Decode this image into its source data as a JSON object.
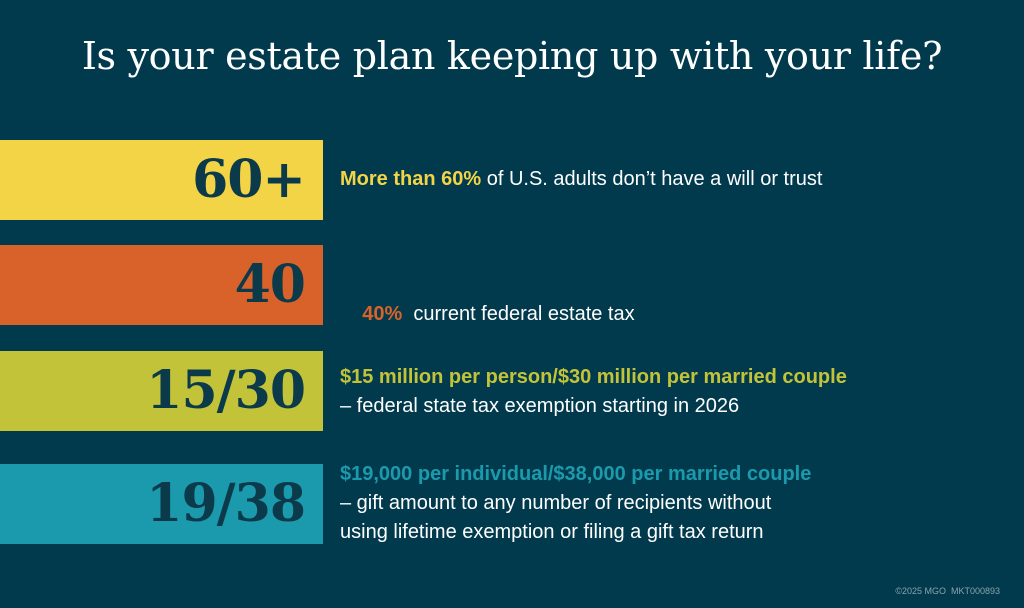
{
  "title": "Is your estate plan keeping up with your life?",
  "colors": {
    "background": "#023a4d",
    "yellow": "#f3d446",
    "orange": "#d8622a",
    "olive": "#c3c33a",
    "teal": "#1c9aad",
    "number_text": "#0b3a4b",
    "body_text": "#ffffff"
  },
  "stats": [
    {
      "number": "60+",
      "highlight": "More than 60%",
      "text": " of U.S. adults don’t have a will or trust",
      "text2": ""
    },
    {
      "number": "40",
      "highlight": "40%",
      "text": "  current federal estate tax",
      "text2": ""
    },
    {
      "number": "15/30",
      "highlight": "$15 million per person/$30 million per married couple",
      "text": "– federal state tax exemption starting in 2026",
      "text2": ""
    },
    {
      "number": "19/38",
      "highlight": "$19,000 per individual/$38,000 per married couple",
      "text": "– gift amount to any number of recipients without",
      "text2": "using lifetime exemption or filing a gift tax return"
    }
  ],
  "footer": "©2025 MGO  MKT000893"
}
